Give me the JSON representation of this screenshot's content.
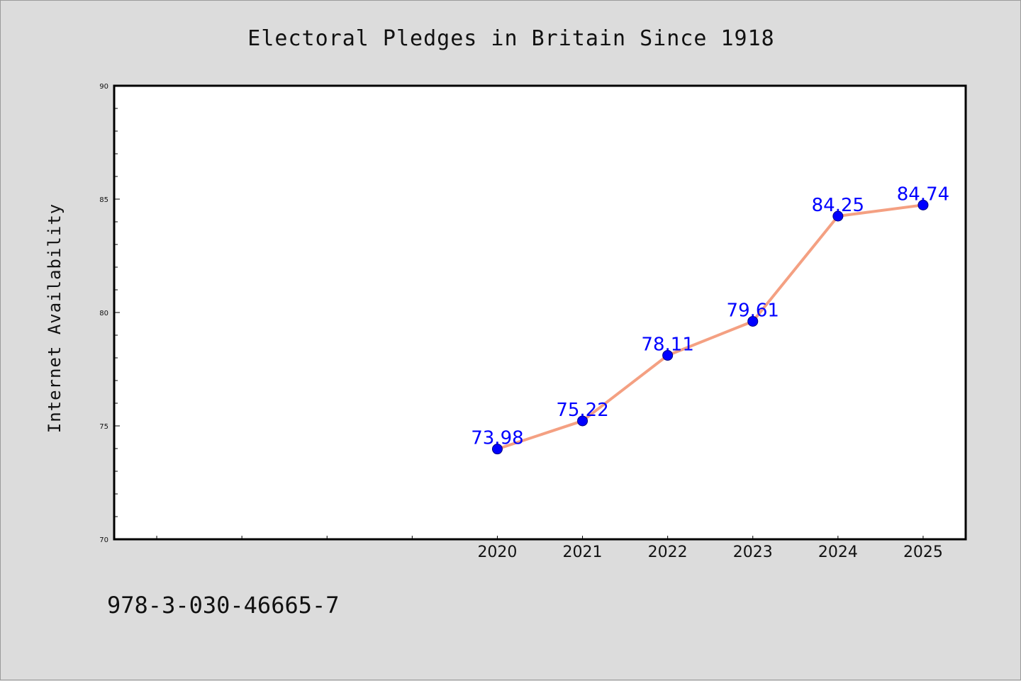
{
  "chart_data": {
    "type": "line",
    "title": "Electoral Pledges in Britain Since 1918",
    "ylabel": "Internet Availability",
    "xlabel": "",
    "x": [
      2020,
      2021,
      2022,
      2023,
      2024,
      2025
    ],
    "x_tick_labels": [
      "2020",
      "2021",
      "2022",
      "2023",
      "2024",
      "2025"
    ],
    "xlim": [
      2015.5,
      2025.5
    ],
    "ylim": [
      70,
      90
    ],
    "y_ticks": [
      70,
      75,
      80,
      85,
      90
    ],
    "y_tick_labels": [
      "70",
      "75",
      "80",
      "85",
      "90"
    ],
    "series": [
      {
        "values": [
          73.98,
          75.22,
          78.11,
          79.61,
          84.25,
          84.74
        ],
        "data_labels": [
          "73.98",
          "75.22",
          "78.11",
          "79.61",
          "84.25",
          "84.74"
        ],
        "line_color": "#f4a082",
        "marker_color": "#0000ff"
      }
    ],
    "grid": false,
    "legend": "none"
  },
  "footer": {
    "isbn": "978-3-030-46665-7"
  },
  "colors": {
    "background": "#dcdcdc",
    "plot_background": "#ffffff",
    "line": "#f4a082",
    "marker": "#0000ff",
    "data_label": "#0000ff"
  }
}
